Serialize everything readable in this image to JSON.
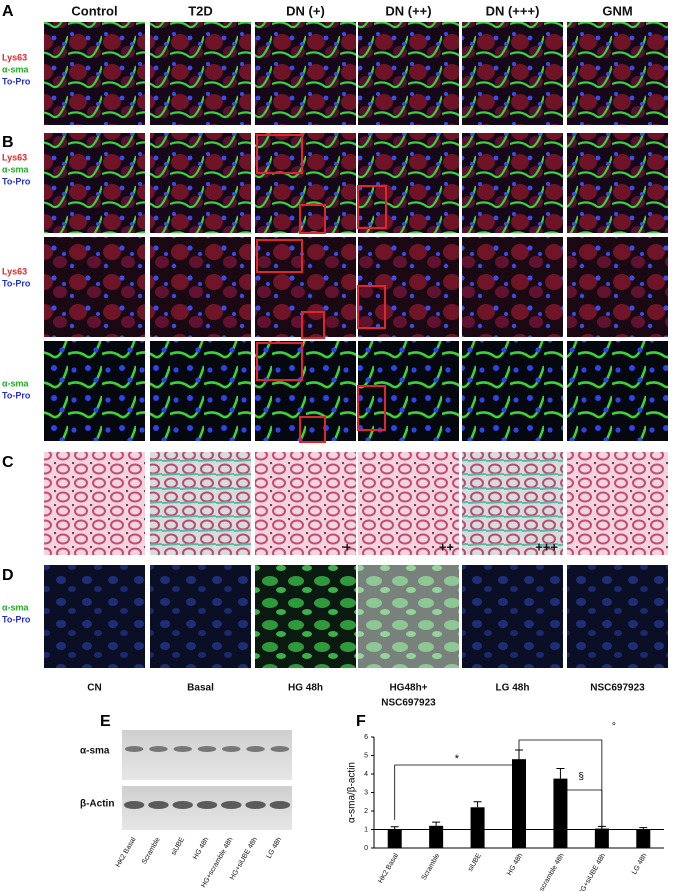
{
  "panels": {
    "A": {
      "label": "A",
      "columns": [
        "Control",
        "T2D",
        "DN (+)",
        "DN (++)",
        "DN (+++)",
        "GNM"
      ],
      "stains": [
        {
          "text": "Lys63",
          "color": "#e0262c"
        },
        {
          "text": "α-sma",
          "color": "#1fae22"
        },
        {
          "text": "To-Pro",
          "color": "#2431c8"
        }
      ]
    },
    "B": {
      "label": "B",
      "rows": [
        [
          {
            "text": "Lys63",
            "color": "#e0262c"
          },
          {
            "text": "α-sma",
            "color": "#1fae22"
          },
          {
            "text": "To-Pro",
            "color": "#2431c8"
          }
        ],
        [
          {
            "text": "Lys63",
            "color": "#e0262c"
          },
          {
            "text": "To-Pro",
            "color": "#2431c8"
          }
        ],
        [
          {
            "text": "α-sma",
            "color": "#1fae22"
          },
          {
            "text": "To-Pro",
            "color": "#2431c8"
          }
        ]
      ]
    },
    "C": {
      "label": "C",
      "annotations": [
        "+",
        "++",
        "+++"
      ]
    },
    "D": {
      "label": "D",
      "stains": [
        {
          "text": "α-sma",
          "color": "#1fae22"
        },
        {
          "text": "To-Pro",
          "color": "#2431c8"
        }
      ],
      "columns": [
        [
          "CN"
        ],
        [
          "Basal"
        ],
        [
          "HG 48h"
        ],
        [
          "HG48h+",
          "NSC697923"
        ],
        [
          "LG 48h"
        ],
        [
          "NSC697923"
        ]
      ]
    },
    "E": {
      "label": "E",
      "bands": [
        "α-sma",
        "β-Actin"
      ],
      "lanes": [
        "HK2 Basal",
        "Scramble",
        "siUBE",
        "HG 48h",
        "HG+scramble 48h",
        "HG+siUBE 48h",
        "LG 48h"
      ]
    },
    "F": {
      "label": "F"
    }
  },
  "chart_data": {
    "type": "bar",
    "ylabel": "α-sma/β-actin",
    "categories": [
      "HK2 Basal",
      "Scramble",
      "siUBE",
      "HG 48h",
      "HG+scramble 48h",
      "HG+siUBE 48h",
      "LG 48h"
    ],
    "values": [
      1.0,
      1.2,
      2.2,
      4.8,
      3.75,
      1.05,
      1.0
    ],
    "errors": [
      0.15,
      0.2,
      0.3,
      0.5,
      0.55,
      0.12,
      0.1
    ],
    "color": "#000000",
    "ylim": [
      0,
      6
    ],
    "yticks": [
      0,
      1,
      2,
      3,
      4,
      5,
      6
    ],
    "reference_line": 1,
    "annotations": [
      "*",
      "°",
      "§"
    ]
  }
}
